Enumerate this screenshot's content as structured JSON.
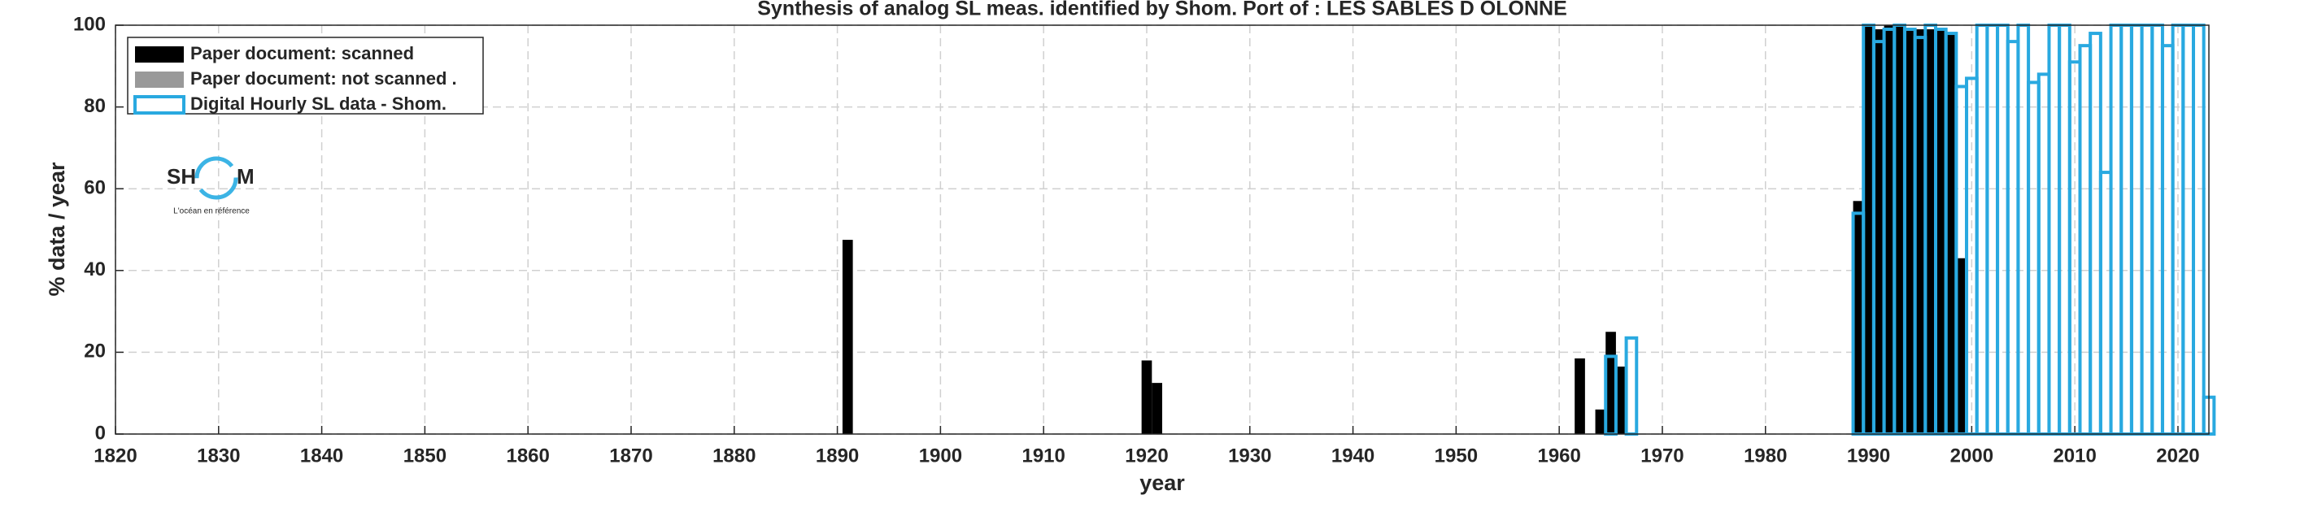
{
  "chart_data": {
    "type": "bar",
    "title": "Synthesis of analog SL meas. identified by Shom. Port of : LES SABLES D OLONNE",
    "x_label": "year",
    "y_label": "% data / year",
    "xlim": [
      1820,
      2023
    ],
    "xticks": [
      1820,
      1830,
      1840,
      1850,
      1860,
      1870,
      1880,
      1890,
      1900,
      1910,
      1920,
      1930,
      1940,
      1950,
      1960,
      1970,
      1980,
      1990,
      2000,
      2010,
      2020
    ],
    "ylim": [
      0,
      100
    ],
    "yticks": [
      0,
      20,
      40,
      60,
      80,
      100
    ],
    "grid": true,
    "legend": "upper left",
    "series": [
      {
        "name": "Paper document: scanned",
        "color": "#000000",
        "style": "filled",
        "x": [
          1891,
          1920,
          1921,
          1962,
          1964,
          1965,
          1966,
          1989,
          1990,
          1991,
          1992,
          1993,
          1994,
          1995,
          1996,
          1997,
          1998,
          1999
        ],
        "values": [
          47.5,
          18,
          12.5,
          18.5,
          6,
          25,
          16.5,
          57,
          100,
          99,
          100,
          100,
          99,
          99,
          99,
          99,
          98,
          43
        ]
      },
      {
        "name": "Paper document: not scanned   .",
        "color": "#999999",
        "style": "filled",
        "x": [],
        "values": []
      },
      {
        "name": "Digital Hourly SL data - Shom.",
        "color": "#29a9e0",
        "style": "outline",
        "x": [
          1965,
          1967,
          1989,
          1990,
          1991,
          1992,
          1993,
          1994,
          1995,
          1996,
          1997,
          1998,
          1999,
          2000,
          2001,
          2002,
          2003,
          2004,
          2005,
          2006,
          2007,
          2008,
          2009,
          2010,
          2011,
          2012,
          2013,
          2014,
          2015,
          2016,
          2017,
          2018,
          2019,
          2020,
          2021,
          2022,
          2023
        ],
        "values": [
          19,
          23.5,
          54,
          100,
          96,
          99,
          100,
          99,
          97,
          100,
          99,
          98,
          85,
          87,
          100,
          100,
          100,
          96,
          100,
          86,
          88,
          100,
          100,
          91,
          95,
          98,
          64,
          100,
          100,
          100,
          100,
          100,
          95,
          100,
          100,
          100,
          9
        ]
      }
    ],
    "logo": {
      "left": "SH",
      "right": "M",
      "tagline": "L'océan en référence"
    }
  }
}
